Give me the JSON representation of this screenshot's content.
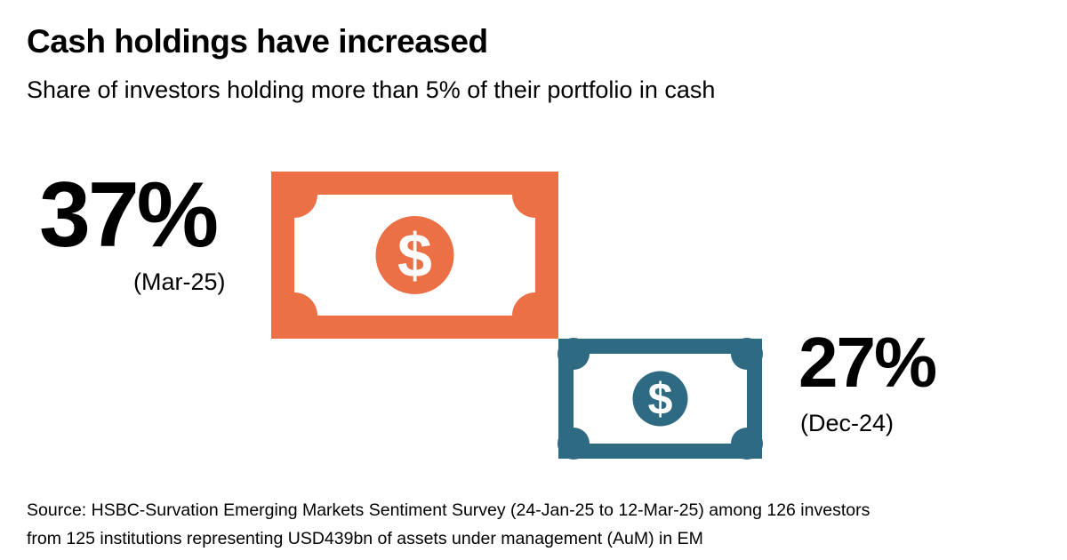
{
  "title": "Cash holdings have increased",
  "subtitle": "Share of investors holding more than 5% of their portfolio in cash",
  "colors": {
    "current": "#EC7046",
    "previous": "#2E6A82"
  },
  "chart_data": {
    "type": "infographic",
    "unit": "%",
    "series": [
      {
        "label": "37%",
        "value": 37,
        "period": "(Mar-25)",
        "color": "#EC7046",
        "icon": "banknote-dollar-icon"
      },
      {
        "label": "27%",
        "value": 27,
        "period": "(Dec-24)",
        "color": "#2E6A82",
        "icon": "banknote-dollar-icon"
      }
    ]
  },
  "source_lines": [
    "Source: HSBC-Survation Emerging Markets Sentiment Survey (24-Jan-25 to 12-Mar-25) among 126 investors",
    "from 125 institutions representing USD439bn of assets under management (AuM) in EM"
  ]
}
